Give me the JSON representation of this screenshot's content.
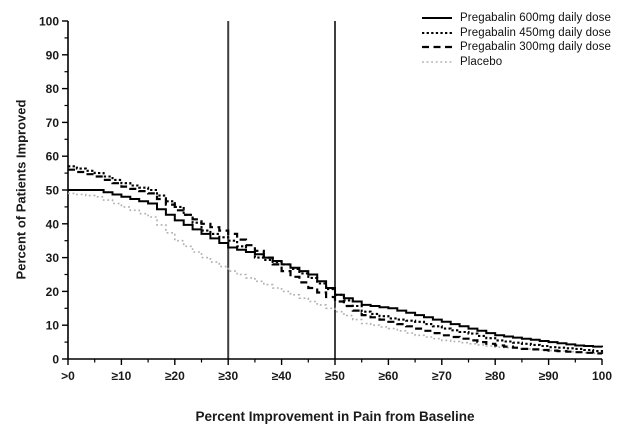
{
  "chart_data": {
    "type": "line",
    "subtype": "step",
    "title": "",
    "xlabel": "Percent Improvement in Pain from Baseline",
    "ylabel": "Percent of Patients Improved",
    "xlim": [
      0,
      100
    ],
    "ylim": [
      0,
      100
    ],
    "x": [
      0,
      5,
      10,
      15,
      20,
      25,
      30,
      35,
      40,
      45,
      50,
      55,
      60,
      65,
      70,
      75,
      80,
      85,
      90,
      95,
      100
    ],
    "x_major_ticks": [
      0,
      10,
      20,
      30,
      40,
      50,
      60,
      70,
      80,
      90,
      100
    ],
    "x_tick_labels": [
      ">0",
      "≥10",
      "≥20",
      "≥30",
      "≥40",
      "≥50",
      "≥60",
      "≥70",
      "≥80",
      "≥90",
      "100"
    ],
    "y_major_ticks": [
      0,
      10,
      20,
      30,
      40,
      50,
      60,
      70,
      80,
      90,
      100
    ],
    "y_tick_labels": [
      "0",
      "10",
      "20",
      "30",
      "40",
      "50",
      "60",
      "70",
      "80",
      "90",
      "100"
    ],
    "minor_tick_step": 5,
    "grid": false,
    "legend_position": "top-right",
    "reference_lines_x": [
      30,
      50
    ],
    "colors": {
      "drug_line": "#000000",
      "placebo_line": "#b0b0b0",
      "reference_line": "#3f3f3f",
      "axis": "#000000",
      "text": "#1a1a1a"
    },
    "series": [
      {
        "name": "Pregabalin 600mg daily dose",
        "style": "solid",
        "color": "#000000",
        "values": [
          50,
          50,
          48,
          46,
          41,
          37,
          33,
          31,
          28,
          25,
          19,
          16,
          15,
          13,
          11,
          9,
          7,
          6,
          5,
          4,
          3.5
        ]
      },
      {
        "name": "Pregabalin 450mg daily dose",
        "style": "dotted",
        "color": "#000000",
        "values": [
          57,
          55,
          52,
          50,
          45,
          38,
          35,
          30,
          28,
          24,
          19,
          14,
          12,
          11,
          9,
          7.5,
          5.5,
          4.5,
          3.5,
          3,
          2
        ]
      },
      {
        "name": "Pregabalin 300mg daily dose",
        "style": "dashed",
        "color": "#000000",
        "values": [
          56,
          54,
          51,
          49,
          44,
          40,
          37,
          32,
          26,
          21,
          17,
          13,
          11,
          9,
          7,
          5.5,
          4,
          3,
          2.5,
          2,
          1.5
        ]
      },
      {
        "name": "Placebo",
        "style": "fine-dotted",
        "color": "#b0b0b0",
        "values": [
          49,
          48,
          45,
          42,
          35,
          30,
          26,
          23,
          20,
          17,
          14,
          10.5,
          9,
          7,
          5.5,
          4.5,
          3.5,
          3,
          2.5,
          2,
          1.5
        ]
      }
    ]
  }
}
